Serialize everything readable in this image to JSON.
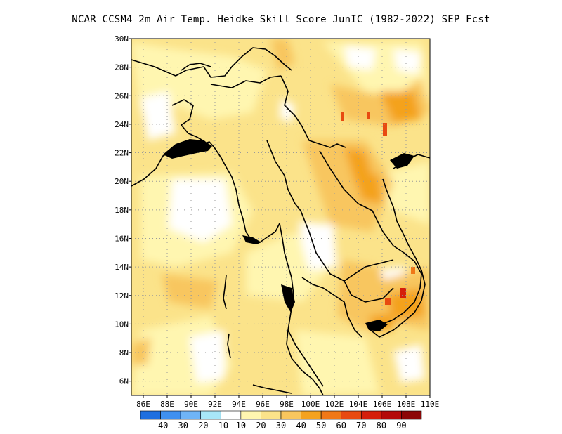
{
  "title": "NCAR_CCSM4  2m Air Temp. Heidke Skill Score JunIC (1982-2022) SEP Fcst",
  "map": {
    "lon_ticks": [
      "86E",
      "88E",
      "90E",
      "92E",
      "94E",
      "96E",
      "98E",
      "100E",
      "102E",
      "104E",
      "106E",
      "108E",
      "110E"
    ],
    "lat_ticks": [
      "30N",
      "28N",
      "26N",
      "24N",
      "22N",
      "20N",
      "18N",
      "16N",
      "14N",
      "12N",
      "10N",
      "8N",
      "6N"
    ],
    "lon_range": [
      85,
      110
    ],
    "lat_range": [
      5,
      30
    ],
    "grid": "dotted"
  },
  "colorbar": {
    "labels": [
      "-40",
      "-30",
      "-20",
      "-10",
      "10",
      "20",
      "30",
      "40",
      "50",
      "60",
      "70",
      "80",
      "90"
    ],
    "colors": [
      "#1e6fe0",
      "#3f90f0",
      "#6fb4f6",
      "#a8e6f8",
      "#ffffff",
      "#fff6b0",
      "#fbe38a",
      "#f8c65e",
      "#f4a21f",
      "#f07818",
      "#e84a10",
      "#d51e0a",
      "#b40a08",
      "#8c0606"
    ]
  },
  "chart_data": {
    "type": "heatmap",
    "title": "NCAR_CCSM4  2m Air Temp. Heidke Skill Score JunIC (1982-2022) SEP Fcst",
    "xlim": [
      85,
      110
    ],
    "ylim": [
      5,
      30
    ],
    "color_levels": [
      -40,
      -30,
      -20,
      -10,
      10,
      20,
      30,
      40,
      50,
      60,
      70,
      80,
      90
    ]
  }
}
